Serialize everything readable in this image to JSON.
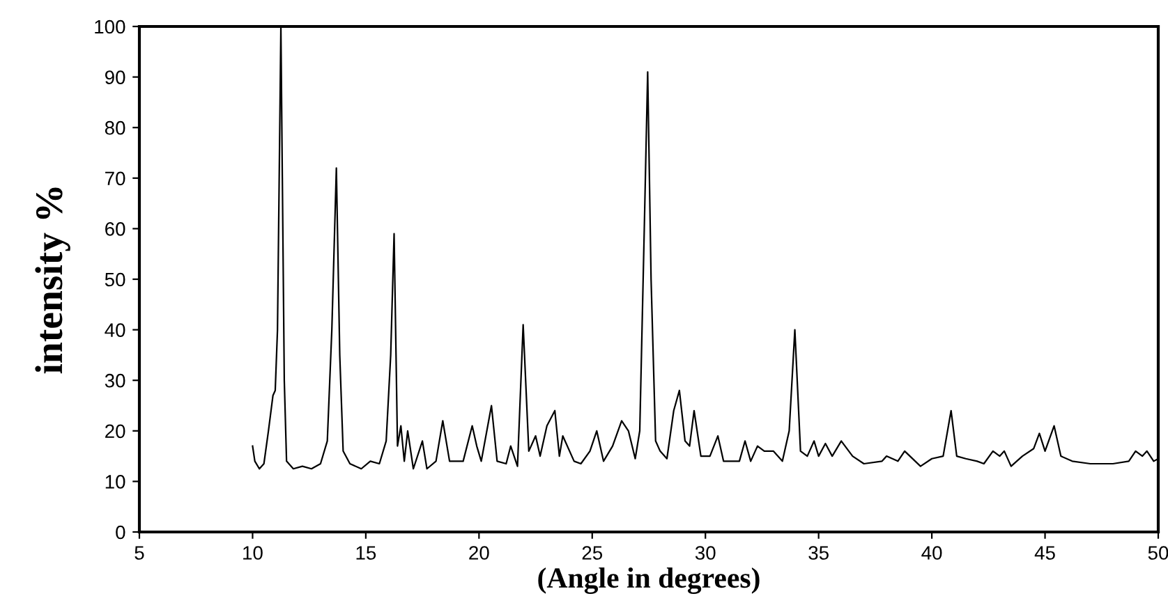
{
  "chart_data": {
    "type": "line",
    "xlabel": "(Angle in degrees)",
    "ylabel": "intensity %",
    "xlim": [
      5,
      50
    ],
    "ylim": [
      0,
      100
    ],
    "xticks": [
      5,
      10,
      15,
      20,
      25,
      30,
      35,
      40,
      45,
      50
    ],
    "yticks": [
      0,
      10,
      20,
      30,
      40,
      50,
      60,
      70,
      80,
      90,
      100
    ],
    "marker": "none",
    "line_style": "solid",
    "series": [
      {
        "color": "#000000",
        "x": [
          10.0,
          10.1,
          10.3,
          10.5,
          10.7,
          10.9,
          11.0,
          11.1,
          11.25,
          11.4,
          11.5,
          11.8,
          12.2,
          12.6,
          13.0,
          13.3,
          13.5,
          13.7,
          13.85,
          14.0,
          14.3,
          14.8,
          15.2,
          15.6,
          15.9,
          16.1,
          16.25,
          16.4,
          16.55,
          16.7,
          16.85,
          17.1,
          17.5,
          17.7,
          18.1,
          18.4,
          18.7,
          19.3,
          19.7,
          19.9,
          20.1,
          20.55,
          20.8,
          21.2,
          21.4,
          21.7,
          21.95,
          22.2,
          22.5,
          22.7,
          23.0,
          23.35,
          23.55,
          23.7,
          24.2,
          24.5,
          24.9,
          25.2,
          25.5,
          25.9,
          26.3,
          26.6,
          26.9,
          27.1,
          27.3,
          27.45,
          27.6,
          27.8,
          28.0,
          28.3,
          28.6,
          28.85,
          29.1,
          29.3,
          29.5,
          29.8,
          30.2,
          30.55,
          30.8,
          31.5,
          31.75,
          32.0,
          32.3,
          32.6,
          33.0,
          33.4,
          33.7,
          33.95,
          34.2,
          34.5,
          34.8,
          35.0,
          35.3,
          35.6,
          36.0,
          36.5,
          37.0,
          37.8,
          38.0,
          38.5,
          38.8,
          39.5,
          40.0,
          40.5,
          40.85,
          41.1,
          41.5,
          42.0,
          42.3,
          42.7,
          43.0,
          43.2,
          43.5,
          44.0,
          44.5,
          44.75,
          45.0,
          45.4,
          45.7,
          46.2,
          47.0,
          48.0,
          48.7,
          49.0,
          49.3,
          49.5,
          49.8,
          50.0
        ],
        "values": [
          17,
          14,
          12.5,
          13.5,
          20,
          27,
          28,
          40,
          100,
          30,
          14,
          12.5,
          13,
          12.5,
          13.5,
          18,
          40,
          72,
          35,
          16,
          13.5,
          12.5,
          14,
          13.5,
          18,
          35,
          59,
          17,
          21,
          14,
          20,
          12.5,
          18,
          12.5,
          14,
          22,
          14,
          14,
          21,
          17,
          14,
          25,
          14,
          13.5,
          17,
          13,
          41,
          16,
          19,
          15,
          21,
          24,
          15,
          19,
          14,
          13.5,
          16,
          20,
          14,
          17,
          22,
          20,
          14.5,
          20,
          60,
          91,
          50,
          18,
          16,
          14.5,
          24,
          28,
          18,
          17,
          24,
          15,
          15,
          19,
          14,
          14,
          18,
          14,
          17,
          16,
          16,
          14,
          20,
          40,
          16,
          15,
          18,
          15,
          17.5,
          15,
          18,
          15,
          13.5,
          14,
          15,
          14,
          16,
          13,
          14.5,
          15,
          24,
          15,
          14.5,
          14,
          13.5,
          16,
          15,
          16,
          13,
          15,
          16.5,
          19.5,
          16,
          21,
          15,
          14,
          13.5,
          13.5,
          14,
          16,
          15,
          16,
          14,
          14.5
        ]
      }
    ]
  }
}
